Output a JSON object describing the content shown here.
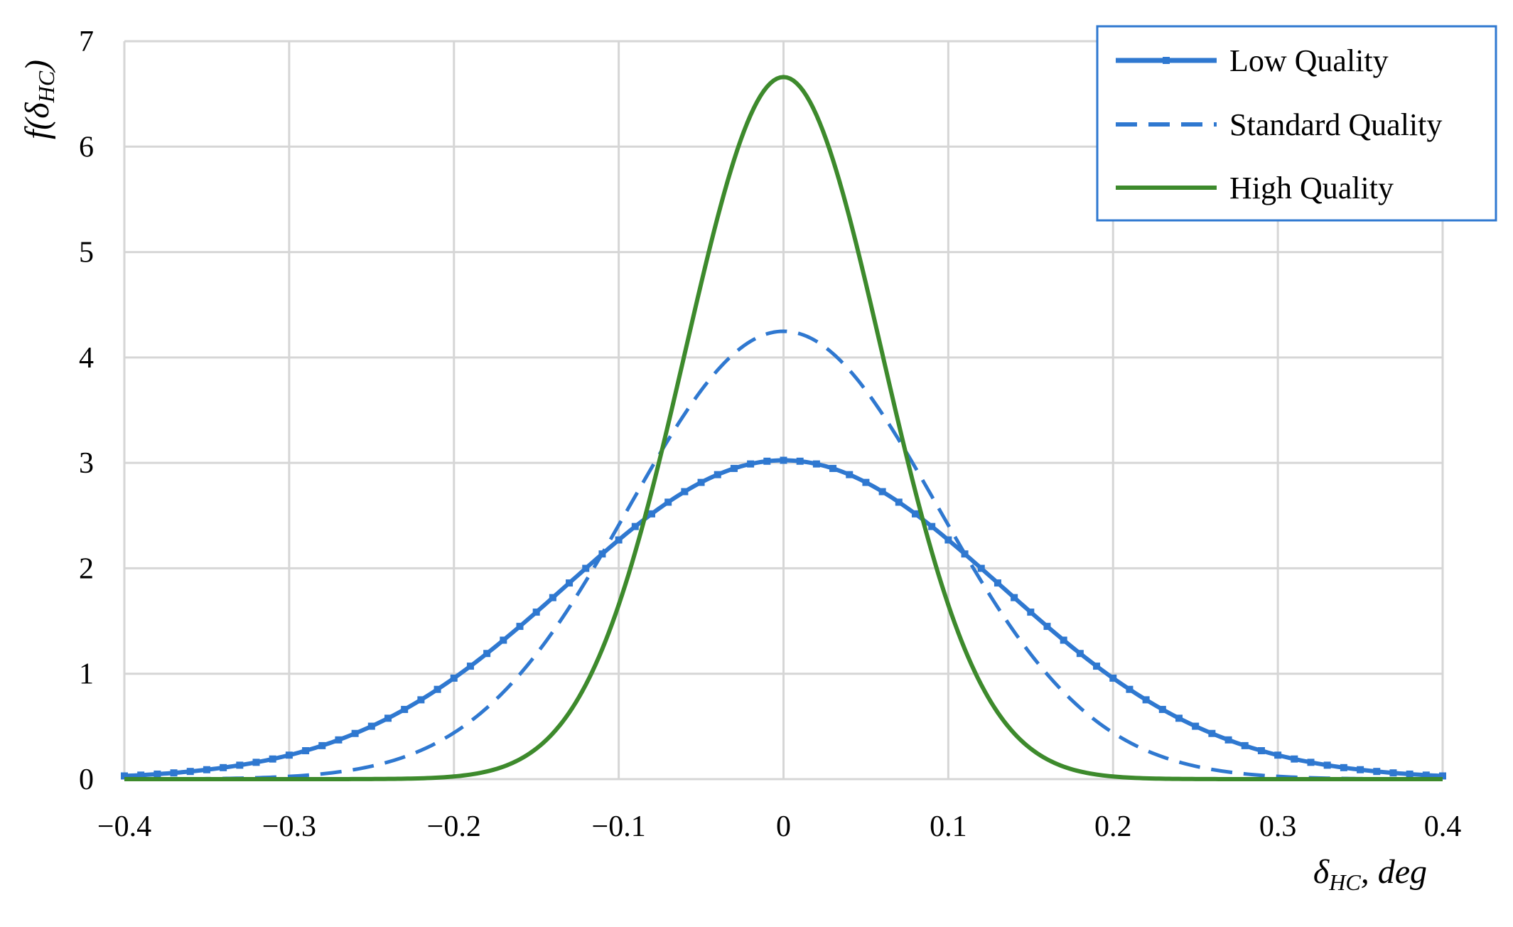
{
  "chart_data": {
    "type": "line",
    "title": "",
    "xlabel": {
      "main": "δ",
      "sub": "HC",
      "suffix": ", deg"
    },
    "ylabel": {
      "prefix": "f(δ",
      "sub": "HC",
      "suffix": ")"
    },
    "xlim": [
      -0.4,
      0.4
    ],
    "ylim": [
      0,
      7
    ],
    "xticks": [
      -0.4,
      -0.3,
      -0.2,
      -0.1,
      0,
      0.1,
      0.2,
      0.3,
      0.4
    ],
    "xtick_labels": [
      "−0.4",
      "−0.3",
      "−0.2",
      "−0.1",
      "0",
      "0.1",
      "0.2",
      "0.3",
      "0.4"
    ],
    "yticks": [
      0,
      1,
      2,
      3,
      4,
      5,
      6,
      7
    ],
    "ytick_labels": [
      "0",
      "1",
      "2",
      "3",
      "4",
      "5",
      "6",
      "7"
    ],
    "grid": true,
    "legend_position": "top-right",
    "series": [
      {
        "name": "Low Quality",
        "color": "#2f78d0",
        "style": "solid-markers",
        "mean": 0,
        "std": 0.1319,
        "peak": 3.02
      },
      {
        "name": "Standard Quality",
        "color": "#2f78d0",
        "style": "dashed",
        "mean": 0,
        "std": 0.0939,
        "peak": 4.25
      },
      {
        "name": "High Quality",
        "color": "#3d8a2c",
        "style": "solid",
        "mean": 0,
        "std": 0.0599,
        "peak": 6.66
      }
    ]
  }
}
